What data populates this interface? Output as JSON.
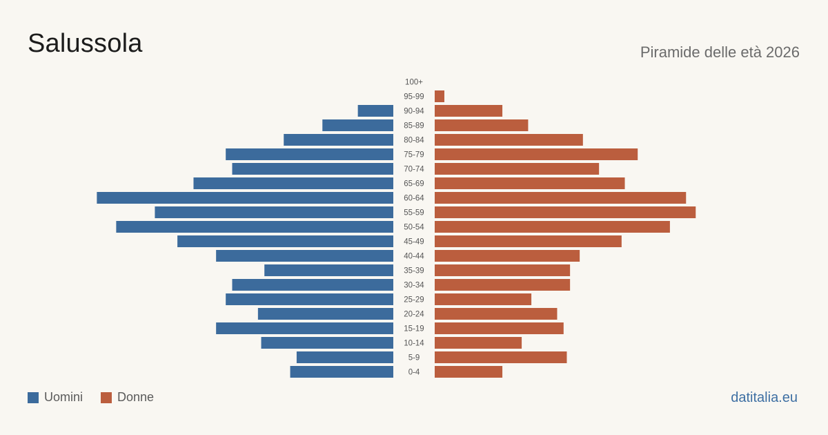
{
  "header": {
    "title": "Salussola",
    "subtitle": "Piramide delle età 2026"
  },
  "legend": {
    "men_label": "Uomini",
    "women_label": "Donne"
  },
  "footer": {
    "brand": "datitalia.eu"
  },
  "colors": {
    "men": "#3c6b9c",
    "women": "#bb5e3e",
    "tick_text": "#555555"
  },
  "chart_data": {
    "type": "bar",
    "orientation": "horizontal",
    "layout": "population-pyramid",
    "title": "Piramide delle età 2026",
    "categories": [
      "100+",
      "95-99",
      "90-94",
      "85-89",
      "80-84",
      "75-79",
      "70-74",
      "65-69",
      "60-64",
      "55-59",
      "50-54",
      "45-49",
      "40-44",
      "35-39",
      "30-34",
      "25-29",
      "20-24",
      "15-19",
      "10-14",
      "5-9",
      "0-4"
    ],
    "series": [
      {
        "name": "Uomini",
        "side": "left",
        "values": [
          0,
          0,
          11,
          22,
          34,
          52,
          50,
          62,
          92,
          74,
          86,
          67,
          55,
          40,
          50,
          52,
          42,
          55,
          41,
          30,
          32
        ]
      },
      {
        "name": "Donne",
        "side": "right",
        "values": [
          0,
          3,
          21,
          29,
          46,
          63,
          51,
          59,
          78,
          81,
          73,
          58,
          45,
          42,
          42,
          30,
          38,
          40,
          27,
          41,
          21
        ]
      }
    ],
    "grid": false,
    "legend_position": "bottom-left"
  }
}
